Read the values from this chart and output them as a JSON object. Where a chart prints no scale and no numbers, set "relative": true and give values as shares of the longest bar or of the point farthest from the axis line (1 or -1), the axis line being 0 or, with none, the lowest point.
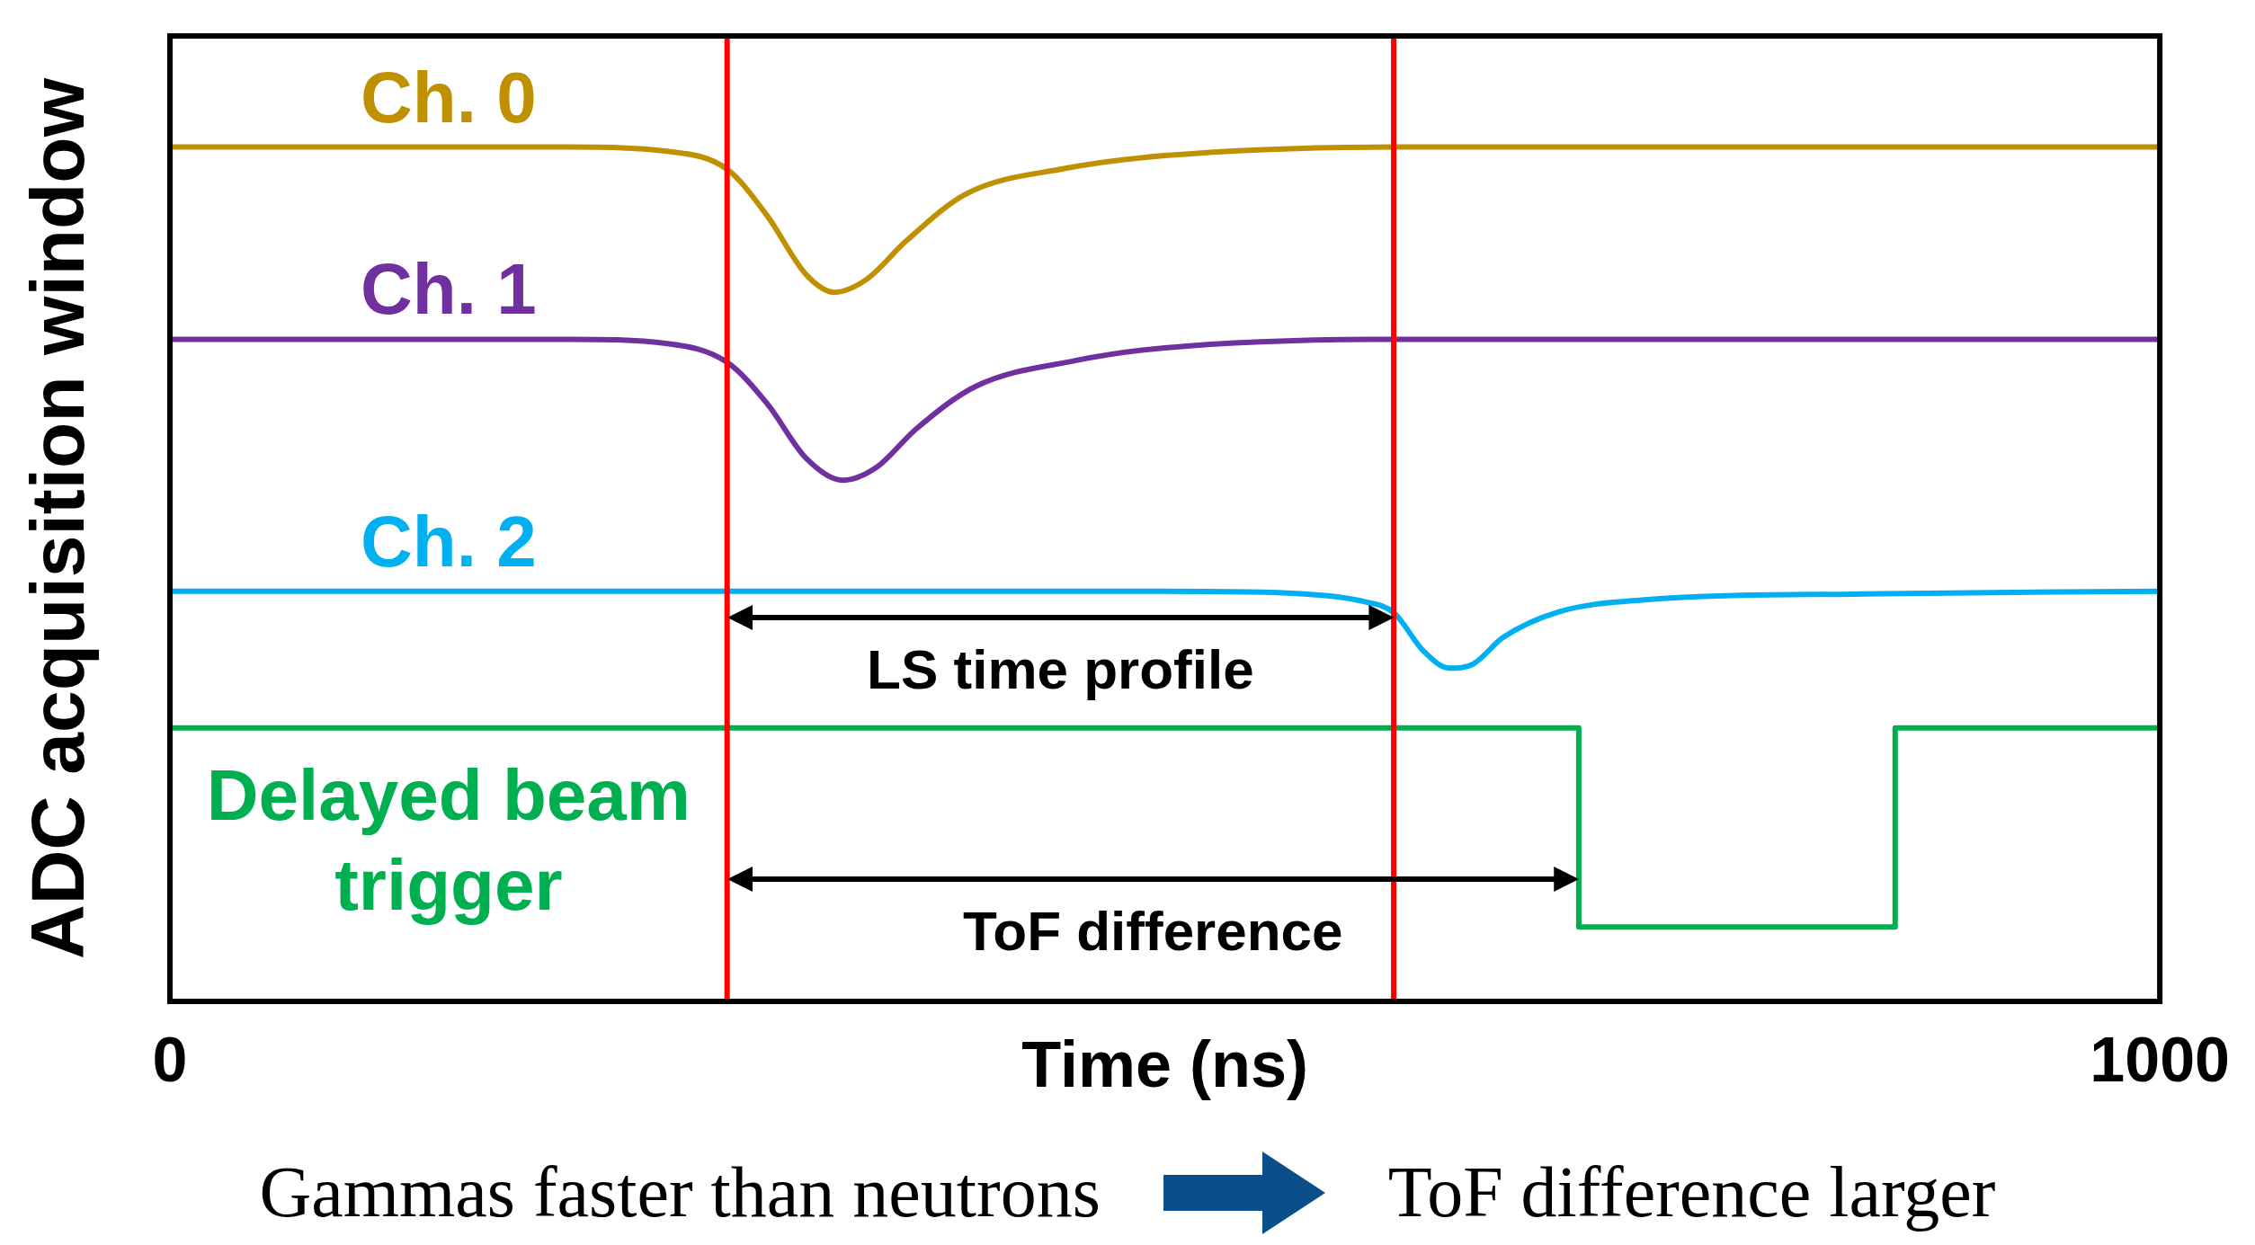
{
  "chart_data": {
    "type": "line",
    "relative": true,
    "xlabel": "Time (ns)",
    "ylabel": "ADC acquisition window",
    "xlim": [
      0,
      1000
    ],
    "xticks": [
      0,
      1000
    ],
    "legend": false,
    "marker": "none",
    "line_style": "solid",
    "series": [
      {
        "name": "Ch. 0",
        "color": "#bf9000",
        "x": [
          0,
          200,
          250,
          280,
          300,
          320,
          334,
          350,
          370,
          400,
          450,
          500,
          615,
          1000
        ],
        "values": [
          1,
          1,
          0.995,
          0.974,
          0.92,
          0.85,
          0.83,
          0.845,
          0.89,
          0.945,
          0.975,
          0.99,
          1,
          1
        ]
      },
      {
        "name": "Ch. 1",
        "color": "#7030a0",
        "x": [
          0,
          200,
          250,
          280,
          300,
          320,
          338,
          355,
          375,
          405,
          455,
          500,
          615,
          1000
        ],
        "values": [
          0.775,
          0.775,
          0.77,
          0.748,
          0.7,
          0.635,
          0.61,
          0.625,
          0.67,
          0.72,
          0.75,
          0.765,
          0.775,
          0.775
        ]
      },
      {
        "name": "Ch. 2",
        "color": "#00b0f0",
        "x": [
          0,
          500,
          570,
          600,
          615,
          630,
          643,
          655,
          670,
          698,
          741,
          850,
          1000
        ],
        "values": [
          0.48,
          0.48,
          0.477,
          0.468,
          0.455,
          0.41,
          0.39,
          0.395,
          0.426,
          0.456,
          0.47,
          0.477,
          0.48
        ]
      },
      {
        "name": "Delayed beam trigger",
        "type": "step",
        "color": "#00b050",
        "x": [
          0,
          708,
          867,
          1000
        ],
        "values": [
          0.32,
          0.087,
          0.32,
          0.32
        ]
      }
    ],
    "ref_lines": [
      {
        "axis": "x",
        "value": 280,
        "color": "#ff0000"
      },
      {
        "axis": "x",
        "value": 615,
        "color": "#ff0000"
      }
    ],
    "annotations": [
      "LS time profile",
      "ToF difference",
      "Gammas faster than neutrons",
      "ToF difference larger"
    ]
  }
}
